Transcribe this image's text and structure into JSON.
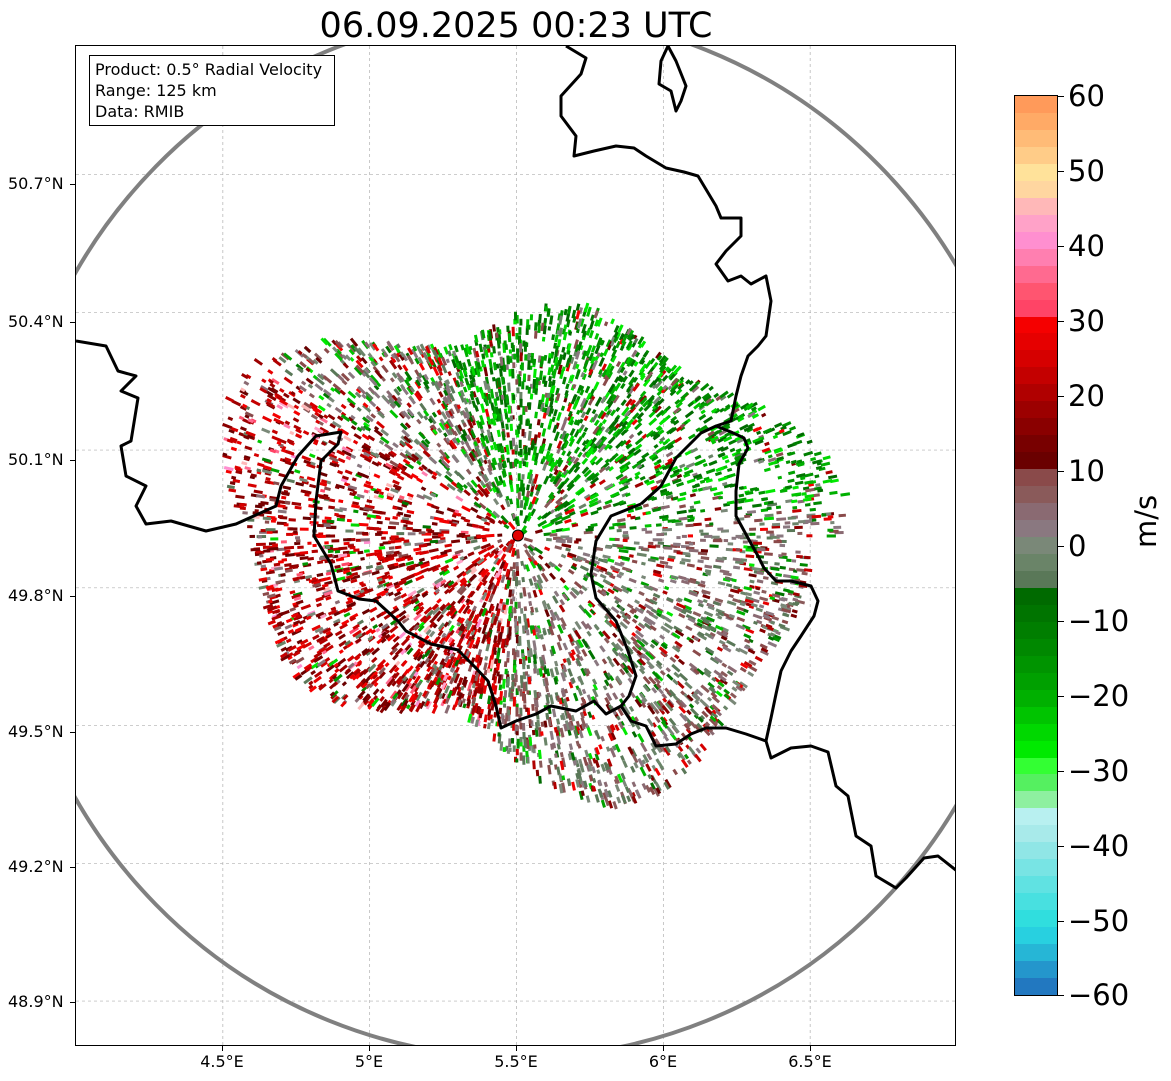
{
  "title": "06.09.2025 00:23 UTC",
  "info": {
    "product": "Product: 0.5° Radial Velocity",
    "range": "Range: 125 km",
    "source": "Data: RMIB"
  },
  "lat_labels": [
    "50.7°N",
    "50.4°N",
    "50.1°N",
    "49.8°N",
    "49.5°N",
    "49.2°N",
    "48.9°N"
  ],
  "lon_labels": [
    "4.5°E",
    "5°E",
    "5.5°E",
    "6°E",
    "6.5°E"
  ],
  "map": {
    "extent_lon": [
      4.0,
      7.0
    ],
    "extent_lat": [
      48.8,
      50.98
    ],
    "radar_site": {
      "lon": 5.505,
      "lat": 49.914
    },
    "range_km": 125,
    "gridlines": true,
    "colors": {
      "border": "#000000",
      "range_ring": "#808080",
      "radar_marker": "#e00000",
      "gridline": "#b0b0b0"
    }
  },
  "colorbar": {
    "unit": "m/s",
    "min": -60,
    "max": 60,
    "tick_labels": [
      "60",
      "50",
      "40",
      "30",
      "20",
      "10",
      "0",
      "−10",
      "−20",
      "−30",
      "−40",
      "−50",
      "−60"
    ],
    "colors_top_to_bottom": [
      "#ff9a5a",
      "#ffaa66",
      "#ffbb77",
      "#ffcc88",
      "#ffe29a",
      "#ffd6a0",
      "#ffb8b8",
      "#ffa2c8",
      "#ff8fd0",
      "#ff7fb0",
      "#ff6a90",
      "#ff5570",
      "#ff4466",
      "#f50000",
      "#e60000",
      "#d60000",
      "#c40000",
      "#b00000",
      "#9c0000",
      "#8a0000",
      "#780000",
      "#6a0000",
      "#8a4a4a",
      "#8a5a5a",
      "#8a6a72",
      "#8a7880",
      "#7a8878",
      "#6a8468",
      "#5a7858",
      "#006a00",
      "#007400",
      "#007e00",
      "#008800",
      "#009400",
      "#00a000",
      "#00b000",
      "#00c400",
      "#00d800",
      "#00ea00",
      "#33ff33",
      "#55f060",
      "#8ef0a0",
      "#b8f0f0",
      "#a8eaea",
      "#90e6e6",
      "#78e4e4",
      "#60e2e2",
      "#48e0e0",
      "#30dede",
      "#28d0e0",
      "#26b6d6",
      "#2496cc",
      "#2278c0"
    ]
  }
}
